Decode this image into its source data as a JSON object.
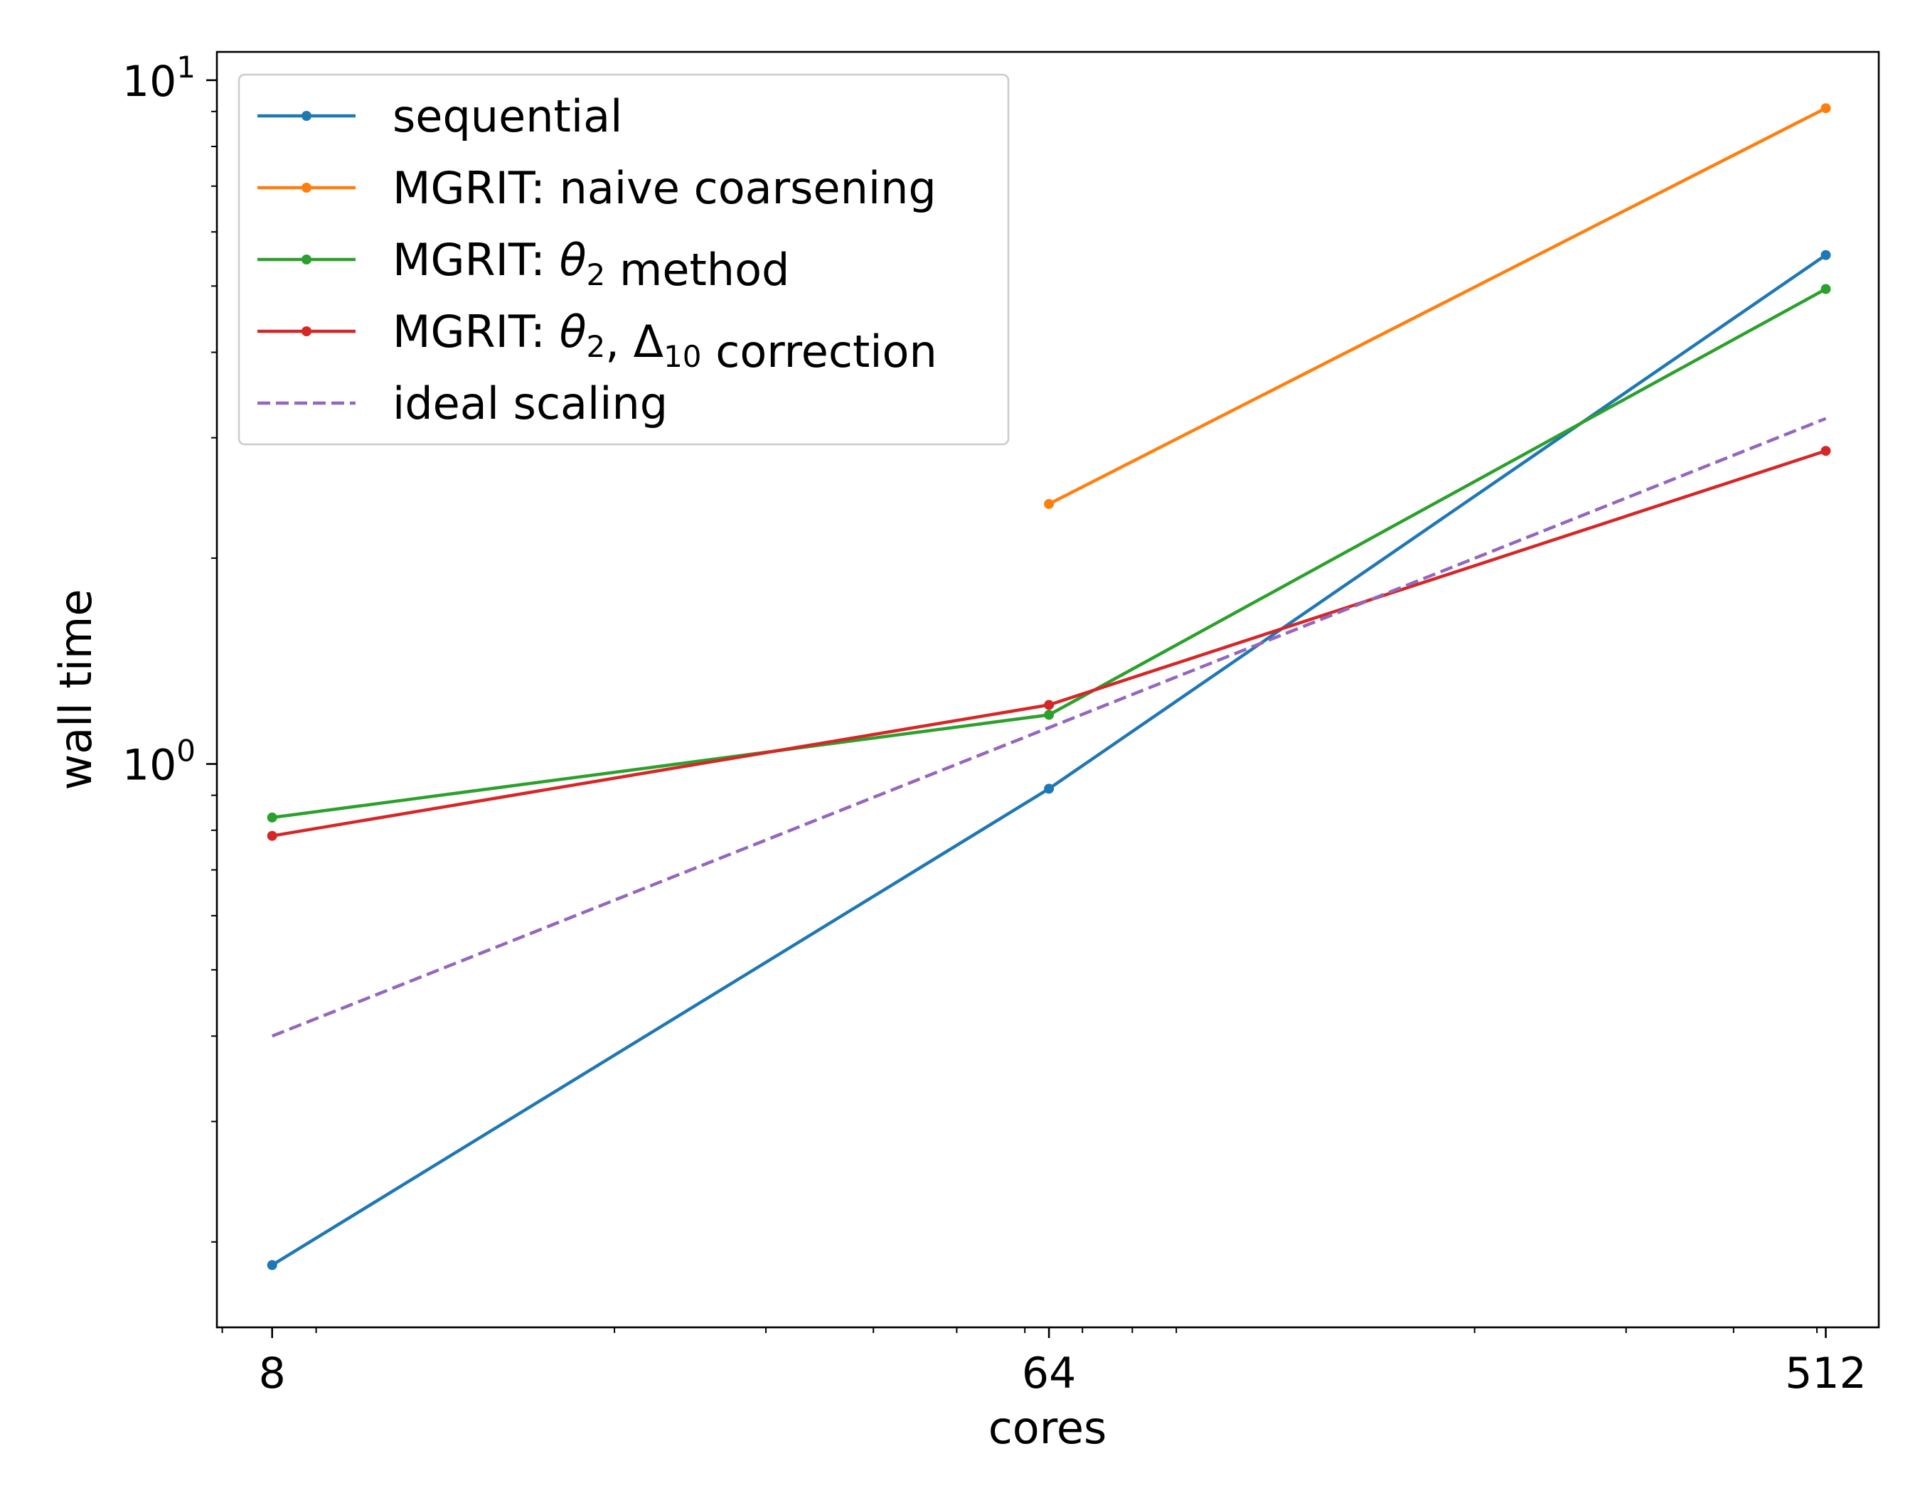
{
  "chart_data": {
    "type": "line",
    "title": "",
    "xlabel": "cores",
    "ylabel": "wall time",
    "xscale": "log",
    "yscale": "log",
    "xlim": [
      6.9,
      590
    ],
    "ylim": [
      0.15,
      11
    ],
    "x_ticks": [
      {
        "value": 8,
        "label": "8"
      },
      {
        "value": 64,
        "label": "64"
      },
      {
        "value": 512,
        "label": "512"
      }
    ],
    "y_ticks": [
      {
        "value": 1,
        "base": "10",
        "exponent": "0"
      },
      {
        "value": 10,
        "base": "10",
        "exponent": "1"
      }
    ],
    "grid": false,
    "legend_position": "top-left",
    "series": [
      {
        "name": "sequential",
        "color": "#1f77b4",
        "style": "solid",
        "marker": "dot",
        "x": [
          8,
          64,
          512
        ],
        "y": [
          0.185,
          0.92,
          5.55
        ]
      },
      {
        "name": "MGRIT: naive coarsening",
        "color": "#ff7f0e",
        "style": "solid",
        "marker": "dot",
        "x": [
          64,
          512
        ],
        "y": [
          2.4,
          9.1
        ]
      },
      {
        "name": "MGRIT: θ2 method",
        "color": "#2ca02c",
        "style": "solid",
        "marker": "dot",
        "x": [
          8,
          64,
          512
        ],
        "y": [
          0.835,
          1.18,
          4.95
        ]
      },
      {
        "name": "MGRIT: θ2, Δ10 correction",
        "color": "#d62728",
        "style": "solid",
        "marker": "dot",
        "x": [
          8,
          64,
          512
        ],
        "y": [
          0.785,
          1.22,
          2.87
        ]
      },
      {
        "name": "ideal scaling",
        "color": "#9467bd",
        "style": "dashed",
        "marker": "none",
        "x": [
          8,
          64,
          512
        ],
        "y": [
          0.4,
          1.13,
          3.2
        ]
      }
    ]
  }
}
